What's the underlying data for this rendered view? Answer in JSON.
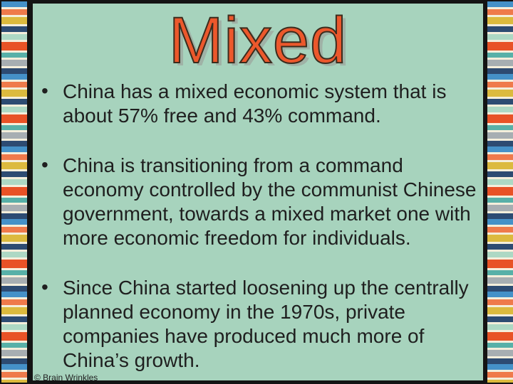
{
  "slide": {
    "title": "Mixed",
    "bullets": [
      {
        "lines": [
          "China has a mixed economic system that is",
          "about 57% free and 43% command."
        ]
      },
      {
        "lines": [
          "China is transitioning from a command",
          "economy controlled by the communist Chinese",
          "government, towards a mixed market one with",
          "more economic freedom for individuals."
        ]
      },
      {
        "lines": [
          "Since China started loosening up the centrally",
          "planned economy in the 1970s, private",
          "companies have produced much more of",
          "China’s growth."
        ]
      }
    ],
    "credit": "© Brain Wrinkles"
  },
  "colors": {
    "background": "#a7d3bd",
    "title_fill": "#ec582c",
    "title_outline": "#3b2c1e",
    "title_shadow": "#9fb2a6",
    "text": "#1f1f1f",
    "frame": "#141414",
    "stripe_palette": [
      "#4591c8",
      "#ef7a4b",
      "#dcba3e",
      "#2d4b72",
      "#add8c4",
      "#e85226",
      "#58b0a8",
      "#a7aeb2",
      "#f4eedb"
    ]
  }
}
